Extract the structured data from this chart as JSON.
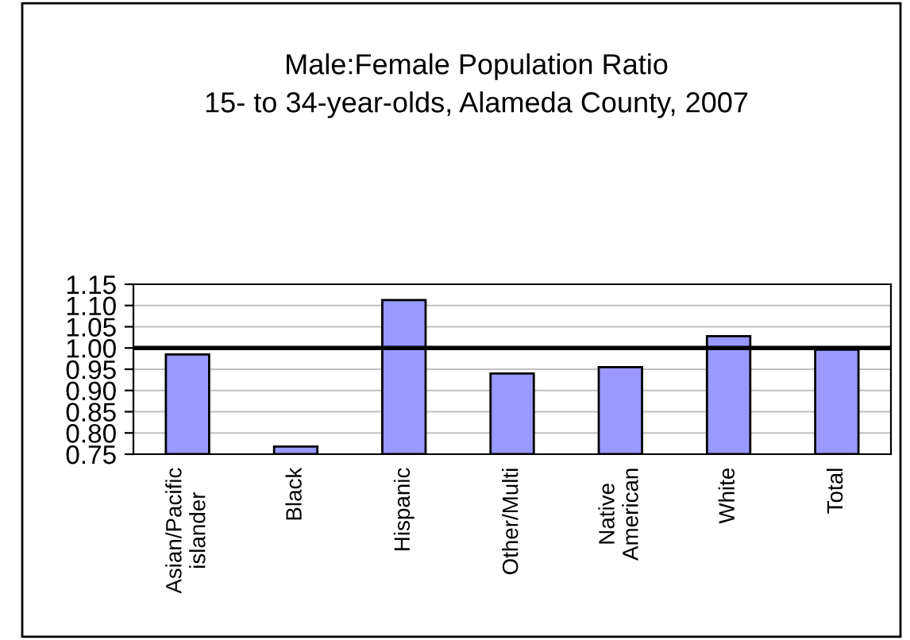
{
  "chart_data": {
    "type": "bar",
    "title": "Male:Female Population Ratio",
    "subtitle": "15- to 34-year-olds, Alameda County, 2007",
    "categories": [
      "Asian/Pacific\nislander",
      "Black",
      "Hispanic",
      "Other/Multi",
      "Native\nAmerican",
      "White",
      "Total"
    ],
    "values": [
      0.985,
      0.768,
      1.113,
      0.94,
      0.955,
      1.028,
      0.996
    ],
    "color": "#9999ff",
    "ylim": [
      0.75,
      1.15
    ],
    "yticks": [
      {
        "value": 0.75,
        "label": "0.75"
      },
      {
        "value": 0.8,
        "label": "0.80"
      },
      {
        "value": 0.85,
        "label": "0.85"
      },
      {
        "value": 0.9,
        "label": "0.90"
      },
      {
        "value": 0.95,
        "label": "0.95"
      },
      {
        "value": 1.0,
        "label": "1.00"
      },
      {
        "value": 1.05,
        "label": "1.05"
      },
      {
        "value": 1.1,
        "label": "1.10"
      },
      {
        "value": 1.15,
        "label": "1.15"
      }
    ],
    "grid": "y",
    "ref_lines": [
      {
        "axis": "y",
        "value": 1.0,
        "color": "#000000"
      }
    ]
  }
}
